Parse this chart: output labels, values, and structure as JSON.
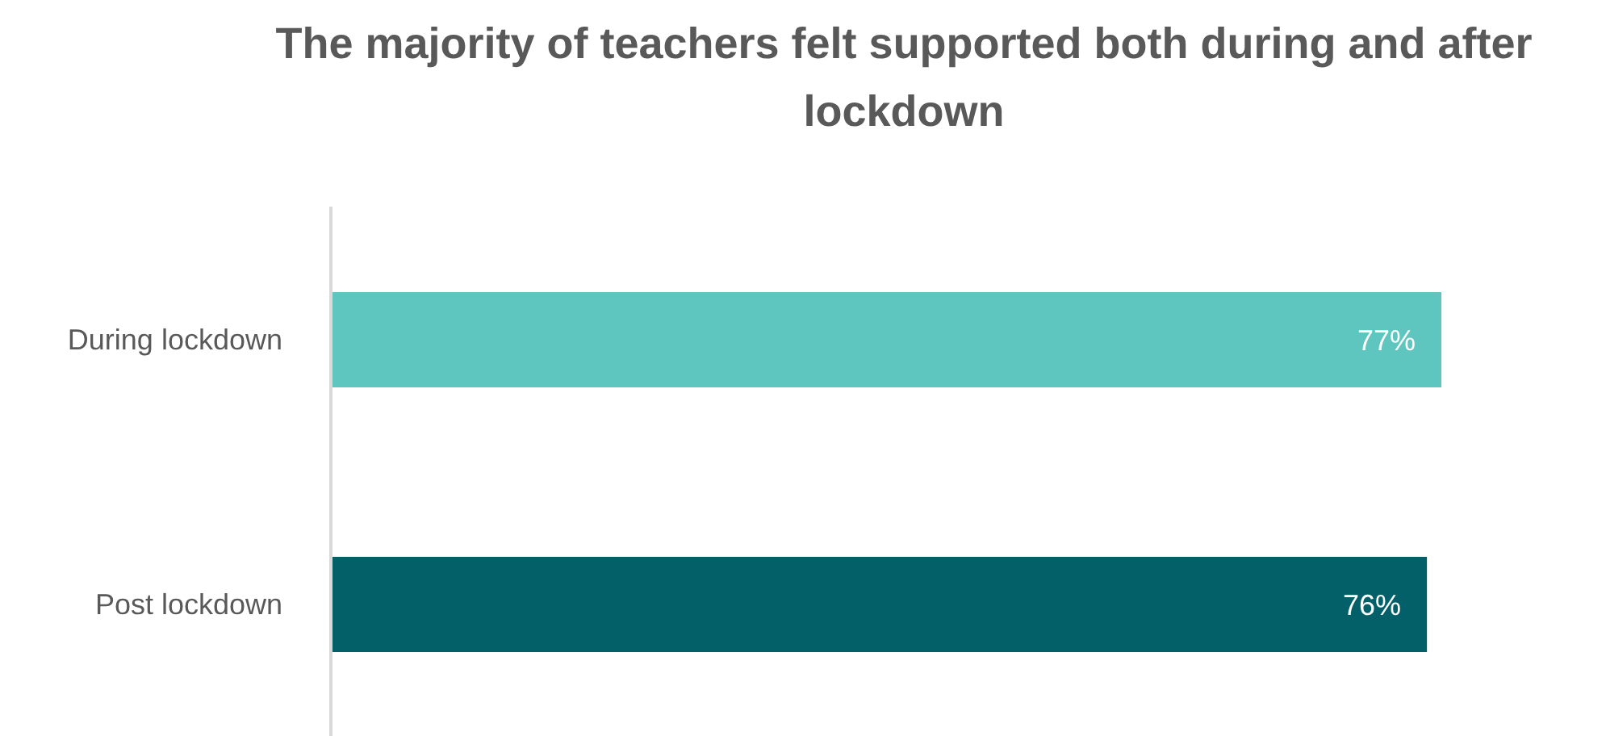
{
  "chart_data": {
    "type": "bar",
    "orientation": "horizontal",
    "title": "The majority of teachers felt supported both during and after lockdown",
    "categories": [
      "During lockdown",
      "Post lockdown"
    ],
    "values": [
      77,
      76
    ],
    "colors": [
      "#5ec5bf",
      "#036068"
    ],
    "value_labels": [
      "77%",
      "76%"
    ]
  }
}
